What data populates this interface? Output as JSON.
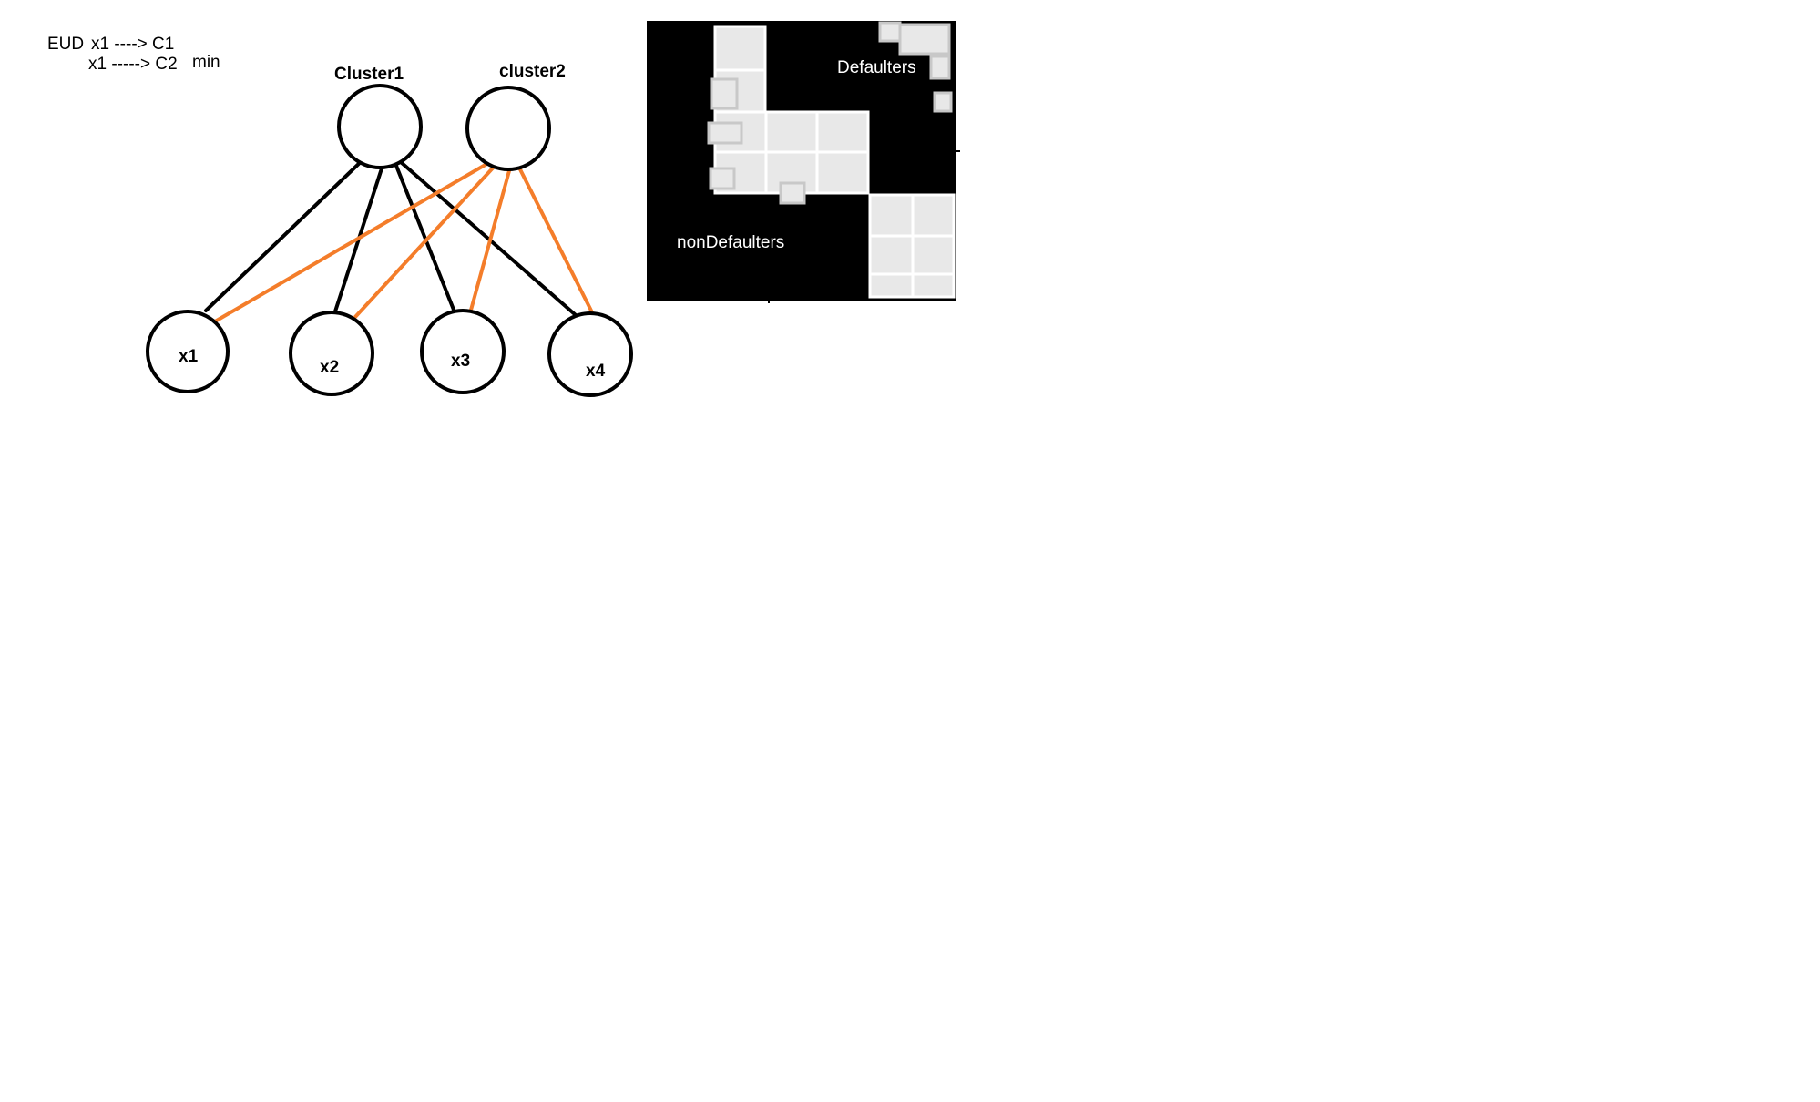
{
  "notes": {
    "line1_prefix": "EUD",
    "line1_rest": "x1 ----> C1",
    "line2": "x1 -----> C2",
    "line2_suffix": "min"
  },
  "clusters": [
    {
      "id": "c1",
      "label": "Cluster1"
    },
    {
      "id": "c2",
      "label": "cluster2"
    }
  ],
  "data_points": [
    {
      "id": "x1",
      "label": "x1"
    },
    {
      "id": "x2",
      "label": "x2"
    },
    {
      "id": "x3",
      "label": "x3"
    },
    {
      "id": "x4",
      "label": "x4"
    }
  ],
  "edges": [
    {
      "from": "Cluster1",
      "to": "x1",
      "color": "#000000"
    },
    {
      "from": "Cluster1",
      "to": "x2",
      "color": "#000000"
    },
    {
      "from": "Cluster1",
      "to": "x3",
      "color": "#000000"
    },
    {
      "from": "Cluster1",
      "to": "x4",
      "color": "#000000"
    },
    {
      "from": "cluster2",
      "to": "x1",
      "color": "#f47d2a"
    },
    {
      "from": "cluster2",
      "to": "x2",
      "color": "#f47d2a"
    },
    {
      "from": "cluster2",
      "to": "x3",
      "color": "#f47d2a"
    },
    {
      "from": "cluster2",
      "to": "x4",
      "color": "#f47d2a"
    }
  ],
  "matrix": {
    "defaulters_label": "Defaulters",
    "nondefaulters_label": "nonDefaulters",
    "background_color": "#000000",
    "cell_color": "#e8e8e8"
  }
}
